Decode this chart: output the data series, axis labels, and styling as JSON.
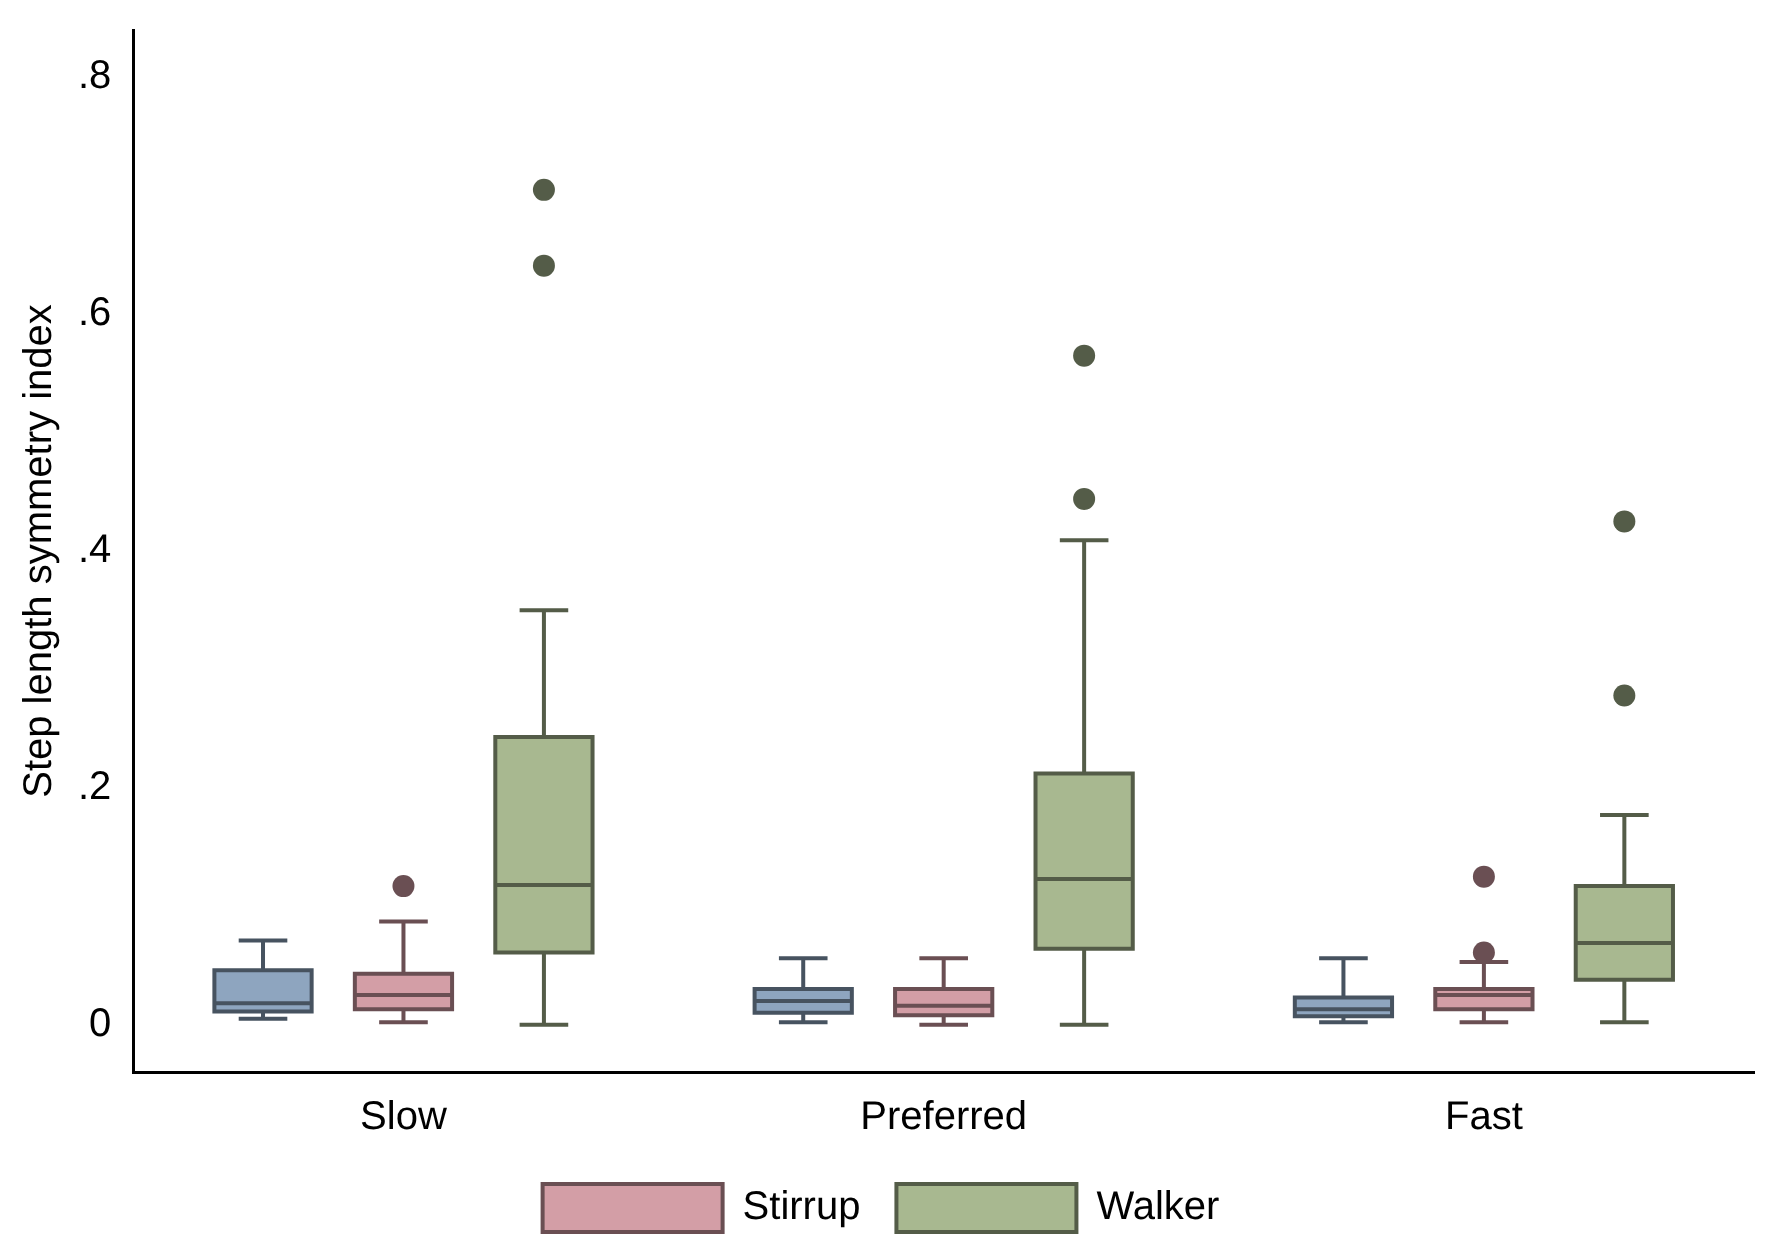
{
  "chart_data": {
    "type": "box",
    "ylabel": "Step length symmetry index",
    "categories": [
      "Slow",
      "Preferred",
      "Fast"
    ],
    "ylim": [
      -0.04,
      0.84
    ],
    "yticks": [
      0,
      {
        "value": 0.2,
        "label": ".2"
      },
      {
        "value": 0.4,
        "label": ".4"
      },
      {
        "value": 0.6,
        "label": ".6"
      },
      {
        "value": 0.8,
        "label": ".8"
      }
    ],
    "grid": false,
    "legend": "bottom",
    "series": [
      {
        "color": "#8ea5bf",
        "boxes": [
          {
            "low": 0.005,
            "q1": 0.011,
            "median": 0.018,
            "q3": 0.046,
            "high": 0.071
          },
          {
            "low": 0.002,
            "q1": 0.01,
            "median": 0.02,
            "q3": 0.03,
            "high": 0.056
          },
          {
            "low": 0.002,
            "q1": 0.007,
            "median": 0.013,
            "q3": 0.023,
            "high": 0.056
          }
        ]
      },
      {
        "name": "Stirrup",
        "color": "#d39ea6",
        "boxes": [
          {
            "low": 0.002,
            "q1": 0.013,
            "median": 0.025,
            "q3": 0.043,
            "high": 0.087,
            "outliers": [
              0.117
            ]
          },
          {
            "low": 0,
            "q1": 0.008,
            "median": 0.016,
            "q3": 0.03,
            "high": 0.056
          },
          {
            "low": 0.002,
            "q1": 0.013,
            "median": 0.025,
            "q3": 0.03,
            "high": 0.053,
            "outliers": [
              0.125,
              0.061
            ]
          }
        ]
      },
      {
        "name": "Walker",
        "color": "#a8b890",
        "boxes": [
          {
            "low": 0,
            "q1": 0.061,
            "median": 0.118,
            "q3": 0.243,
            "high": 0.35,
            "outliers": [
              0.705,
              0.641
            ]
          },
          {
            "low": 0,
            "q1": 0.064,
            "median": 0.123,
            "q3": 0.212,
            "high": 0.409,
            "outliers": [
              0.565,
              0.444
            ]
          },
          {
            "low": 0.002,
            "q1": 0.038,
            "median": 0.069,
            "q3": 0.117,
            "high": 0.177,
            "outliers": [
              0.425,
              0.278
            ]
          }
        ]
      }
    ]
  }
}
